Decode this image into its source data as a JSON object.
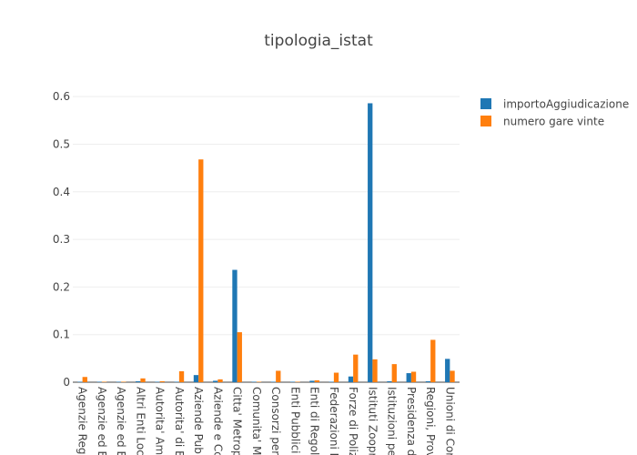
{
  "chart_data": {
    "type": "bar",
    "title": "tipologia_istat",
    "xlabel": "",
    "ylabel": "",
    "ylim": [
      0,
      0.6
    ],
    "yticks": [
      0,
      0.1,
      0.2,
      0.3,
      0.4,
      0.5,
      0.6
    ],
    "ytick_labels": [
      "0",
      "0.1",
      "0.2",
      "0.3",
      "0.4",
      "0.5",
      "0.6"
    ],
    "grid": true,
    "legend_position": "top-right",
    "categories": [
      "Agenzie Regio",
      "Agenzie ed E",
      "Agenzie ed Er",
      "Altri Enti Loca",
      "Autorita' Amm",
      "Autorita' di B",
      "Aziende Publ",
      "Aziende e Co",
      "Citta' Metrop",
      "Comunita' Mo",
      "Consorzi per",
      "Enti Pubblici",
      "Enti di Regola",
      "Federazioni N",
      "Forze di Poliz",
      "Istituti Zoopr",
      "Istituzioni pe",
      "Presidenza d",
      "Regioni, Prov",
      "Unioni di Cor"
    ],
    "series": [
      {
        "name": "importoAggiudicazione",
        "color": "#1f77b4",
        "values": [
          0.001,
          0.001,
          0.001,
          0.002,
          0.001,
          0.001,
          0.015,
          0.003,
          0.236,
          0.001,
          0.001,
          0.001,
          0.003,
          0.001,
          0.012,
          0.586,
          0.002,
          0.019,
          0.002,
          0.049
        ]
      },
      {
        "name": "numero gare vinte",
        "color": "#ff7f0e",
        "values": [
          0.011,
          0.001,
          0.001,
          0.008,
          0.002,
          0.023,
          0.468,
          0.006,
          0.105,
          0.001,
          0.024,
          0.001,
          0.004,
          0.02,
          0.058,
          0.048,
          0.038,
          0.022,
          0.089,
          0.024
        ]
      }
    ]
  }
}
